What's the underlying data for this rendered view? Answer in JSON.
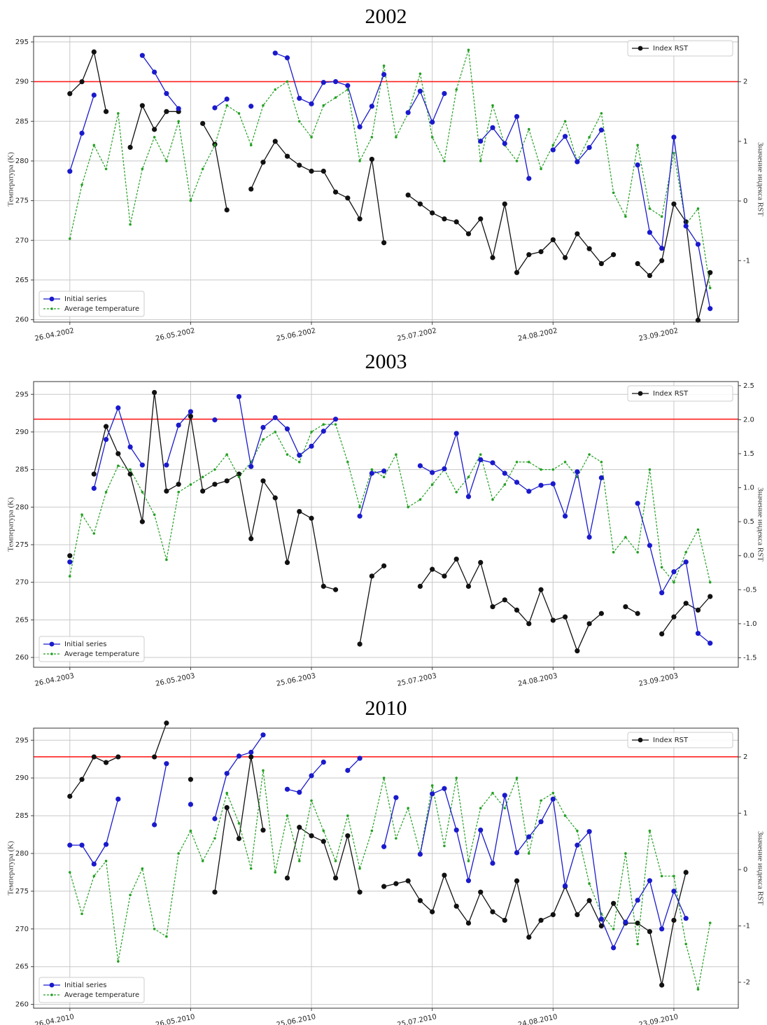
{
  "chart_data": [
    {
      "type": "line",
      "title": "2002",
      "ylabel": "Температура (K)",
      "y2label": "Значение индекса RST",
      "x": [
        "2002-04-26",
        "2002-04-29",
        "2002-05-02",
        "2002-05-05",
        "2002-05-08",
        "2002-05-11",
        "2002-05-14",
        "2002-05-17",
        "2002-05-20",
        "2002-05-23",
        "2002-05-26",
        "2002-05-29",
        "2002-06-01",
        "2002-06-04",
        "2002-06-07",
        "2002-06-10",
        "2002-06-13",
        "2002-06-16",
        "2002-06-19",
        "2002-06-22",
        "2002-06-25",
        "2002-06-28",
        "2002-07-01",
        "2002-07-04",
        "2002-07-07",
        "2002-07-10",
        "2002-07-13",
        "2002-07-16",
        "2002-07-19",
        "2002-07-22",
        "2002-07-25",
        "2002-07-28",
        "2002-07-31",
        "2002-08-03",
        "2002-08-06",
        "2002-08-09",
        "2002-08-12",
        "2002-08-15",
        "2002-08-18",
        "2002-08-21",
        "2002-08-24",
        "2002-08-27",
        "2002-08-30",
        "2002-09-02",
        "2002-09-05",
        "2002-09-08",
        "2002-09-11",
        "2002-09-14",
        "2002-09-17",
        "2002-09-20",
        "2002-09-23",
        "2002-09-26",
        "2002-09-29",
        "2002-10-02"
      ],
      "xlim": [
        "2002-04-17",
        "2002-10-09"
      ],
      "xticks": [
        {
          "value": "2002-04-26",
          "label": "26.04.2002"
        },
        {
          "value": "2002-05-26",
          "label": "26.05.2002"
        },
        {
          "value": "2002-06-25",
          "label": "25.06.2002"
        },
        {
          "value": "2002-07-25",
          "label": "25.07.2002"
        },
        {
          "value": "2002-08-24",
          "label": "24.08.2002"
        },
        {
          "value": "2002-09-23",
          "label": "23.09.2002"
        }
      ],
      "ylim": [
        259.7,
        295.7
      ],
      "yticks": [
        260,
        265,
        270,
        275,
        280,
        285,
        290,
        295
      ],
      "y2lim": [
        -2.03,
        2.76
      ],
      "y2ticks": [
        -1,
        0,
        1,
        2
      ],
      "hline": 290,
      "hline_color": "#ff2020",
      "grid": true,
      "legend": "lower left",
      "legend2": "upper right",
      "series": [
        {
          "name": "Initial series",
          "color": "#1a1acc",
          "linestyle": "solid",
          "values": [
            278.7,
            283.5,
            288.3,
            null,
            null,
            null,
            293.3,
            291.2,
            288.5,
            286.6,
            null,
            null,
            286.7,
            287.8,
            null,
            286.9,
            null,
            293.6,
            293.0,
            287.9,
            287.2,
            289.9,
            290.0,
            289.5,
            284.3,
            286.9,
            290.9,
            null,
            286.1,
            288.8,
            284.9,
            288.5,
            null,
            null,
            282.5,
            284.2,
            282.2,
            285.6,
            277.8,
            null,
            281.4,
            283.1,
            279.9,
            281.7,
            283.9,
            null,
            null,
            279.5,
            271,
            269,
            283,
            271.8,
            269.5,
            261.4
          ]
        },
        {
          "name": "Average temperature",
          "color": "#22a022",
          "linestyle": "dashed",
          "values": [
            270.2,
            277,
            282,
            279,
            286,
            272,
            279,
            283,
            280,
            285,
            275,
            279,
            282,
            287,
            286,
            282,
            287,
            289,
            290,
            285,
            283,
            287,
            288,
            289,
            280,
            283,
            292,
            283,
            286,
            291,
            283,
            280,
            289,
            294,
            280,
            287,
            282,
            280,
            284,
            279,
            282,
            285,
            280,
            283,
            286,
            276,
            273,
            282,
            274,
            273,
            281,
            272,
            274,
            264
          ]
        },
        {
          "name": "Index RST",
          "color": "#111111",
          "linestyle": "solid",
          "axis": "y2",
          "values": [
            1.8,
            2.0,
            2.5,
            1.5,
            null,
            0.9,
            1.6,
            1.2,
            1.5,
            1.5,
            null,
            1.3,
            0.95,
            -0.15,
            null,
            0.2,
            0.65,
            1.0,
            0.75,
            0.6,
            0.5,
            0.5,
            0.15,
            0.05,
            -0.3,
            0.7,
            -0.7,
            null,
            0.1,
            -0.05,
            -0.2,
            -0.3,
            -0.35,
            -0.55,
            -0.3,
            -0.95,
            -0.05,
            -1.2,
            -0.9,
            -0.85,
            -0.65,
            -0.95,
            -0.55,
            -0.8,
            -1.05,
            -0.9,
            null,
            -1.05,
            -1.25,
            -1.0,
            -0.05,
            -0.35,
            -2.0,
            -1.2
          ]
        }
      ]
    },
    {
      "type": "line",
      "title": "2003",
      "ylabel": "Температура (K)",
      "y2label": "Значение индекса RST",
      "x": [
        "2003-04-26",
        "2003-04-29",
        "2003-05-02",
        "2003-05-05",
        "2003-05-08",
        "2003-05-11",
        "2003-05-14",
        "2003-05-17",
        "2003-05-20",
        "2003-05-23",
        "2003-05-26",
        "2003-05-29",
        "2003-06-01",
        "2003-06-04",
        "2003-06-07",
        "2003-06-10",
        "2003-06-13",
        "2003-06-16",
        "2003-06-19",
        "2003-06-22",
        "2003-06-25",
        "2003-06-28",
        "2003-07-01",
        "2003-07-04",
        "2003-07-07",
        "2003-07-10",
        "2003-07-13",
        "2003-07-16",
        "2003-07-19",
        "2003-07-22",
        "2003-07-25",
        "2003-07-28",
        "2003-07-31",
        "2003-08-03",
        "2003-08-06",
        "2003-08-09",
        "2003-08-12",
        "2003-08-15",
        "2003-08-18",
        "2003-08-21",
        "2003-08-24",
        "2003-08-27",
        "2003-08-30",
        "2003-09-02",
        "2003-09-05",
        "2003-09-08",
        "2003-09-11",
        "2003-09-14",
        "2003-09-17",
        "2003-09-20",
        "2003-09-23",
        "2003-09-26",
        "2003-09-29",
        "2003-10-02"
      ],
      "xlim": [
        "2003-04-17",
        "2003-10-09"
      ],
      "xticks": [
        {
          "value": "2003-04-26",
          "label": "26.04.2003"
        },
        {
          "value": "2003-05-26",
          "label": "26.05.2003"
        },
        {
          "value": "2003-06-25",
          "label": "25.06.2003"
        },
        {
          "value": "2003-07-25",
          "label": "25.07.2003"
        },
        {
          "value": "2003-08-24",
          "label": "24.08.2003"
        },
        {
          "value": "2003-09-23",
          "label": "23.09.2003"
        }
      ],
      "ylim": [
        258.7,
        296.7
      ],
      "yticks": [
        260,
        265,
        270,
        275,
        280,
        285,
        290,
        295
      ],
      "y2lim": [
        -1.64,
        2.56
      ],
      "y2ticks": [
        -1.5,
        {
          "value": -1,
          "label": "-1.0"
        },
        -0.5,
        {
          "value": 0,
          "label": "0.0"
        },
        0.5,
        {
          "value": 1,
          "label": "1.0"
        },
        1.5,
        {
          "value": 2,
          "label": "2.0"
        },
        2.5
      ],
      "hline": 291.7,
      "hline_color": "#ff2020",
      "grid": true,
      "legend": "lower left",
      "legend2": "upper right",
      "series": [
        {
          "name": "Initial series",
          "color": "#1a1acc",
          "linestyle": "solid",
          "values": [
            272.7,
            null,
            282.5,
            289,
            293.2,
            288,
            285.6,
            null,
            285.6,
            290.9,
            292.7,
            null,
            291.6,
            null,
            294.7,
            285.4,
            290.6,
            291.9,
            290.4,
            286.9,
            288.1,
            290.1,
            291.7,
            null,
            278.8,
            284.5,
            284.8,
            null,
            null,
            285.5,
            284.6,
            285.1,
            289.8,
            281.4,
            286.3,
            285.9,
            284.5,
            283.3,
            282.1,
            282.9,
            283.1,
            278.8,
            284.7,
            276,
            283.9,
            null,
            null,
            280.5,
            274.9,
            268.6,
            271.4,
            272.7,
            263.2,
            261.9
          ]
        },
        {
          "name": "Average temperature",
          "color": "#22a022",
          "linestyle": "dashed",
          "values": [
            270.8,
            279,
            276.5,
            282,
            285.5,
            285,
            282,
            279,
            273,
            282,
            283,
            284,
            285,
            287,
            284,
            286,
            289,
            290,
            287,
            286,
            290,
            291,
            291,
            286,
            280,
            285,
            284,
            287,
            280,
            281,
            283,
            285,
            282,
            284,
            287,
            281,
            283,
            286,
            286,
            285,
            285,
            286,
            284,
            287,
            286,
            274,
            276,
            274,
            285,
            272,
            270,
            274,
            277,
            270
          ]
        },
        {
          "name": "Index RST",
          "color": "#111111",
          "linestyle": "solid",
          "axis": "y2",
          "values": [
            0.0,
            null,
            1.2,
            1.9,
            1.5,
            1.2,
            0.5,
            2.4,
            0.95,
            1.05,
            2.05,
            0.95,
            1.05,
            1.1,
            1.2,
            0.25,
            1.1,
            0.85,
            -0.1,
            0.65,
            0.55,
            -0.45,
            -0.5,
            null,
            -1.3,
            -0.3,
            -0.15,
            null,
            null,
            -0.45,
            -0.2,
            -0.3,
            -0.05,
            -0.45,
            -0.1,
            -0.75,
            -0.65,
            -0.8,
            -1.0,
            -0.5,
            -0.95,
            -0.9,
            -1.4,
            -1.0,
            -0.85,
            null,
            -0.75,
            -0.85,
            null,
            -1.15,
            -0.9,
            -0.7,
            -0.8,
            -0.6
          ]
        }
      ]
    },
    {
      "type": "line",
      "title": "2010",
      "ylabel": "Температура (K)",
      "y2label": "Значение индекса RST",
      "x": [
        "2010-04-26",
        "2010-04-29",
        "2010-05-02",
        "2010-05-05",
        "2010-05-08",
        "2010-05-11",
        "2010-05-14",
        "2010-05-17",
        "2010-05-20",
        "2010-05-23",
        "2010-05-26",
        "2010-05-29",
        "2010-06-01",
        "2010-06-04",
        "2010-06-07",
        "2010-06-10",
        "2010-06-13",
        "2010-06-16",
        "2010-06-19",
        "2010-06-22",
        "2010-06-25",
        "2010-06-28",
        "2010-07-01",
        "2010-07-04",
        "2010-07-07",
        "2010-07-10",
        "2010-07-13",
        "2010-07-16",
        "2010-07-19",
        "2010-07-22",
        "2010-07-25",
        "2010-07-28",
        "2010-07-31",
        "2010-08-03",
        "2010-08-06",
        "2010-08-09",
        "2010-08-12",
        "2010-08-15",
        "2010-08-18",
        "2010-08-21",
        "2010-08-24",
        "2010-08-27",
        "2010-08-30",
        "2010-09-02",
        "2010-09-05",
        "2010-09-08",
        "2010-09-11",
        "2010-09-14",
        "2010-09-17",
        "2010-09-20",
        "2010-09-23",
        "2010-09-26",
        "2010-09-29",
        "2010-10-02"
      ],
      "xlim": [
        "2010-04-17",
        "2010-10-09"
      ],
      "xticks": [
        {
          "value": "2010-04-26",
          "label": "26.04.2010"
        },
        {
          "value": "2010-05-26",
          "label": "26.05.2010"
        },
        {
          "value": "2010-06-25",
          "label": "25.06.2010"
        },
        {
          "value": "2010-07-25",
          "label": "25.07.2010"
        },
        {
          "value": "2010-08-24",
          "label": "24.08.2010"
        },
        {
          "value": "2010-09-23",
          "label": "23.09.2010"
        }
      ],
      "ylim": [
        259.5,
        296.6
      ],
      "yticks": [
        260,
        265,
        270,
        275,
        280,
        285,
        290,
        295
      ],
      "y2lim": [
        -2.46,
        2.51
      ],
      "y2ticks": [
        -2,
        -1,
        0,
        1,
        2
      ],
      "hline": 292.8,
      "hline_color": "#ff2020",
      "grid": true,
      "legend": "lower left",
      "legend2": "upper right",
      "series": [
        {
          "name": "Initial series",
          "color": "#1a1acc",
          "linestyle": "solid",
          "values": [
            281.1,
            281.1,
            278.6,
            281.2,
            287.2,
            null,
            null,
            283.8,
            291.9,
            null,
            286.5,
            null,
            284.6,
            290.6,
            292.9,
            293.4,
            295.7,
            null,
            288.5,
            288.1,
            290.3,
            292.1,
            null,
            291,
            292.6,
            null,
            280.9,
            287.4,
            null,
            279.9,
            287.9,
            288.6,
            283.1,
            276.4,
            283.1,
            278.7,
            287.7,
            280.1,
            282.2,
            284.2,
            287.2,
            275.7,
            281.1,
            282.9,
            271.3,
            267.5,
            270.9,
            273.8,
            276.4,
            270,
            275,
            271.4,
            null,
            null
          ]
        },
        {
          "name": "Average temperature",
          "color": "#22a022",
          "linestyle": "dashed",
          "values": [
            277.5,
            272,
            277,
            279,
            265.7,
            274.5,
            278,
            270,
            269,
            280,
            283,
            279,
            282,
            288,
            284,
            278,
            291,
            277.5,
            285,
            279,
            287,
            283,
            279,
            285,
            278,
            283,
            290,
            282,
            286,
            280,
            289,
            281,
            290,
            279,
            286,
            288,
            286,
            290,
            280,
            287,
            288,
            285,
            283,
            276,
            272,
            270,
            280,
            268,
            283,
            277,
            277,
            268,
            262,
            270.8
          ]
        },
        {
          "name": "Index RST",
          "color": "#111111",
          "linestyle": "solid",
          "axis": "y2",
          "values": [
            1.3,
            1.6,
            2.0,
            1.9,
            2.0,
            null,
            null,
            2.0,
            2.6,
            null,
            1.6,
            null,
            -0.4,
            1.1,
            0.55,
            2.0,
            0.7,
            null,
            -0.15,
            0.75,
            0.6,
            0.5,
            -0.15,
            0.6,
            -0.4,
            null,
            -0.3,
            -0.25,
            -0.2,
            -0.55,
            -0.75,
            -0.1,
            -0.65,
            -0.95,
            -0.4,
            -0.75,
            -0.9,
            -0.2,
            -1.2,
            -0.9,
            -0.8,
            -0.3,
            -0.8,
            -0.55,
            -1.0,
            -0.6,
            -0.95,
            -0.95,
            -1.1,
            -2.05,
            -0.9,
            -0.05,
            null,
            null
          ]
        }
      ]
    }
  ]
}
